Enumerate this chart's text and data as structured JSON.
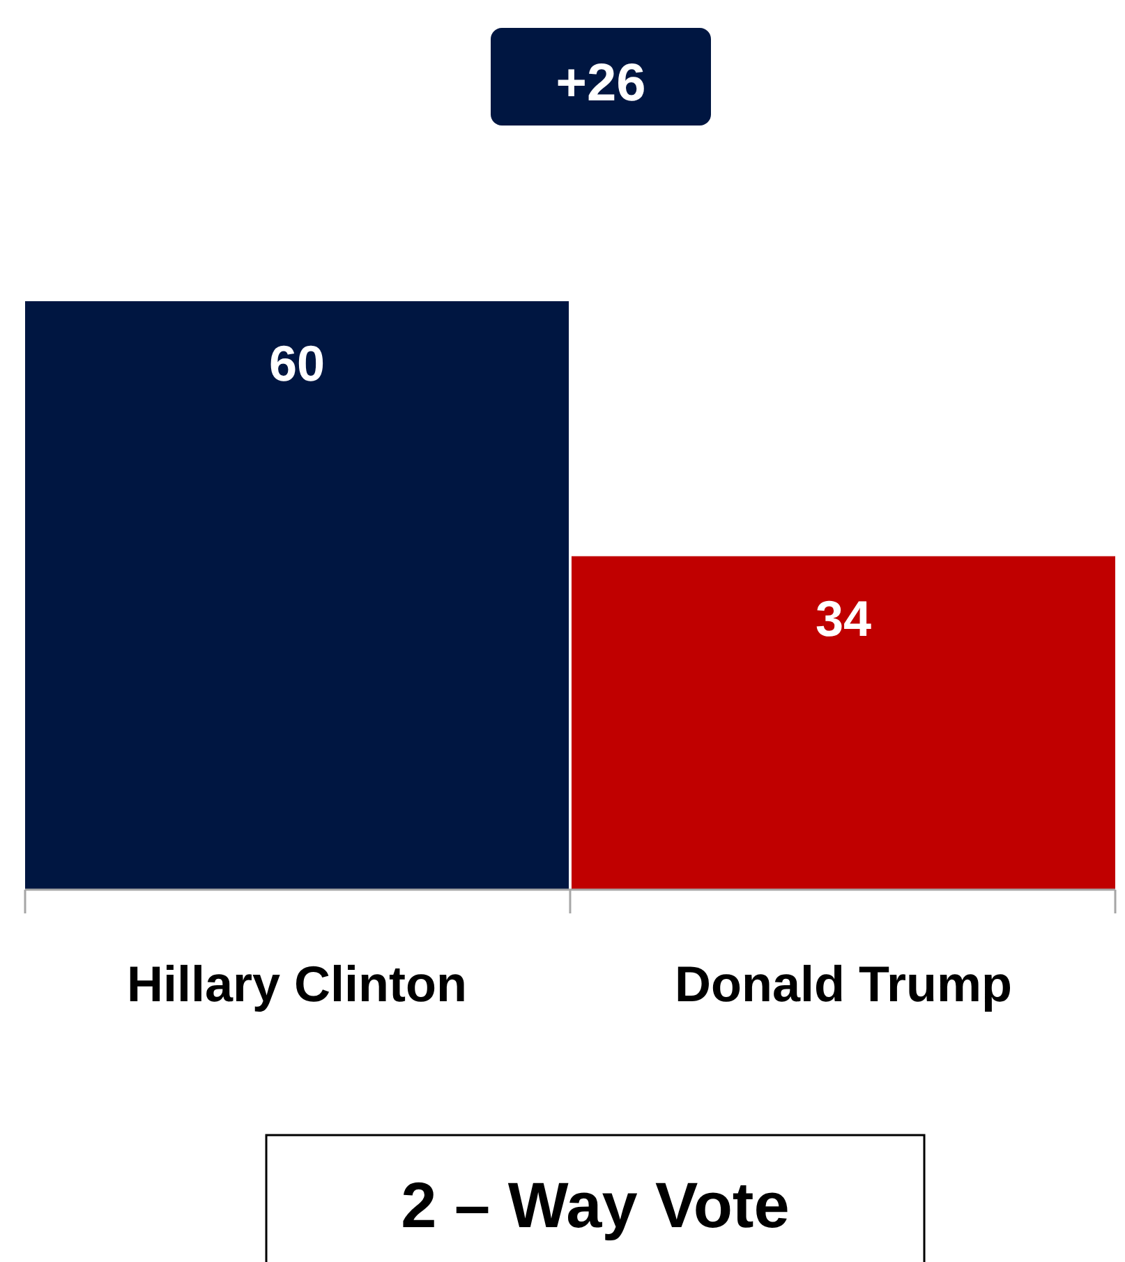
{
  "chart_data": {
    "type": "bar",
    "title": "2 – Way Vote",
    "categories": [
      "Hillary Clinton",
      "Donald Trump"
    ],
    "values": [
      60,
      34
    ],
    "colors": [
      "#001641",
      "#c00000"
    ],
    "data_labels": true,
    "annotations": [
      "+26"
    ]
  }
}
